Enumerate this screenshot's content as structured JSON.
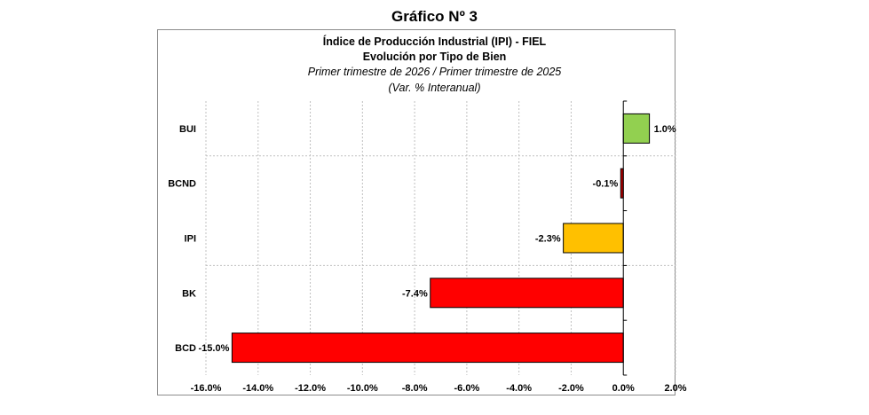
{
  "figure": {
    "title": "Gráfico Nº 3"
  },
  "chart_data": {
    "type": "bar",
    "orientation": "horizontal",
    "title": "Índice de Producción Industrial (IPI) - FIEL",
    "subtitle": "Evolución por Tipo de Bien",
    "period": "Primer trimestre de 2026 / Primer trimestre de 2025",
    "unit_note": "(Var. % Interanual)",
    "categories": [
      "BUI",
      "BCND",
      "IPI",
      "BK",
      "BCD"
    ],
    "values": [
      1.0,
      -0.1,
      -2.3,
      -7.4,
      -15.0
    ],
    "value_labels": [
      "1.0%",
      "-0.1%",
      "-2.3%",
      "-7.4%",
      "-15.0%"
    ],
    "colors": [
      "#92d050",
      "#c00000",
      "#ffc000",
      "#ff0000",
      "#ff0000"
    ],
    "xlim": [
      -16.0,
      2.0
    ],
    "x_ticks": [
      -16.0,
      -14.0,
      -12.0,
      -10.0,
      -8.0,
      -6.0,
      -4.0,
      -2.0,
      0.0,
      2.0
    ],
    "x_tick_labels": [
      "-16.0%",
      "-14.0%",
      "-12.0%",
      "-10.0%",
      "-8.0%",
      "-6.0%",
      "-4.0%",
      "-2.0%",
      "0.0%",
      "2.0%"
    ],
    "grid": true,
    "legend": "none"
  }
}
